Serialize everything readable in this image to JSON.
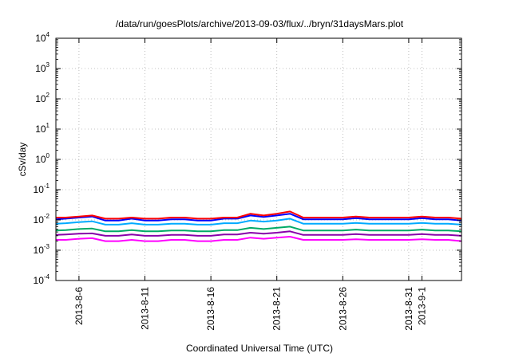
{
  "chart_data": {
    "type": "line",
    "title": "/data/run/goesPlots/archive/2013-09-03/flux/../bryn/31daysMars.plot",
    "xlabel": "Coordinated Universal Time (UTC)",
    "ylabel": "cSv/day",
    "y_scale": "log",
    "ylim": [
      0.0001,
      10000
    ],
    "xlim": [
      "2013-08-04T06:00",
      "2013-09-04T00:00"
    ],
    "y_ticks": [
      {
        "value": 0.0001,
        "base": "10",
        "exp": "-4"
      },
      {
        "value": 0.001,
        "base": "10",
        "exp": "-3"
      },
      {
        "value": 0.01,
        "base": "10",
        "exp": "-2"
      },
      {
        "value": 0.1,
        "base": "10",
        "exp": "-1"
      },
      {
        "value": 1,
        "base": "10",
        "exp": "0"
      },
      {
        "value": 10,
        "base": "10",
        "exp": "1"
      },
      {
        "value": 100,
        "base": "10",
        "exp": "2"
      },
      {
        "value": 1000,
        "base": "10",
        "exp": "3"
      },
      {
        "value": 10000,
        "base": "10",
        "exp": "4"
      }
    ],
    "x_ticks": [
      {
        "date": "2013-08-06",
        "label": "2013-8-6"
      },
      {
        "date": "2013-08-11",
        "label": "2013-8-11"
      },
      {
        "date": "2013-08-16",
        "label": "2013-8-16"
      },
      {
        "date": "2013-08-21",
        "label": "2013-8-21"
      },
      {
        "date": "2013-08-26",
        "label": "2013-8-26"
      },
      {
        "date": "2013-08-31",
        "label": "2013-8-31"
      },
      {
        "date": "2013-09-01",
        "label": "2013-9-1"
      }
    ],
    "grid": true,
    "legend": "none",
    "series_points": [
      "2013-08-04T06:00",
      "2013-08-05T00:00",
      "2013-08-06T00:00",
      "2013-08-07T00:00",
      "2013-08-08T00:00",
      "2013-08-09T00:00",
      "2013-08-10T00:00",
      "2013-08-11T00:00",
      "2013-08-12T00:00",
      "2013-08-13T00:00",
      "2013-08-14T00:00",
      "2013-08-15T00:00",
      "2013-08-16T00:00",
      "2013-08-17T00:00",
      "2013-08-18T00:00",
      "2013-08-19T00:00",
      "2013-08-20T00:00",
      "2013-08-21T00:00",
      "2013-08-22T00:00",
      "2013-08-23T00:00",
      "2013-08-24T00:00",
      "2013-08-25T00:00",
      "2013-08-26T00:00",
      "2013-08-27T00:00",
      "2013-08-28T00:00",
      "2013-08-29T00:00",
      "2013-08-30T00:00",
      "2013-08-31T00:00",
      "2013-09-01T00:00",
      "2013-09-02T00:00",
      "2013-09-03T00:00",
      "2013-09-04T00:00"
    ],
    "series": [
      {
        "color": "#ff0000",
        "values": [
          0.012,
          0.012,
          0.013,
          0.014,
          0.011,
          0.011,
          0.012,
          0.011,
          0.011,
          0.012,
          0.012,
          0.011,
          0.011,
          0.012,
          0.012,
          0.016,
          0.014,
          0.016,
          0.019,
          0.012,
          0.012,
          0.012,
          0.012,
          0.013,
          0.012,
          0.012,
          0.012,
          0.012,
          0.013,
          0.012,
          0.012,
          0.011
        ]
      },
      {
        "color": "#0000ff",
        "values": [
          0.0105,
          0.011,
          0.012,
          0.013,
          0.0095,
          0.0095,
          0.011,
          0.0095,
          0.0095,
          0.0105,
          0.0105,
          0.0095,
          0.0095,
          0.011,
          0.011,
          0.014,
          0.0125,
          0.014,
          0.016,
          0.0105,
          0.0105,
          0.0105,
          0.0105,
          0.0115,
          0.0105,
          0.0105,
          0.0105,
          0.0105,
          0.0115,
          0.0105,
          0.0105,
          0.0095
        ]
      },
      {
        "color": "#00aaff",
        "values": [
          0.0075,
          0.0078,
          0.0085,
          0.009,
          0.007,
          0.007,
          0.0078,
          0.007,
          0.007,
          0.0075,
          0.0075,
          0.007,
          0.007,
          0.0078,
          0.0078,
          0.0095,
          0.0088,
          0.0095,
          0.011,
          0.0075,
          0.0075,
          0.0075,
          0.0075,
          0.008,
          0.0075,
          0.0075,
          0.0075,
          0.0075,
          0.008,
          0.0075,
          0.0075,
          0.007
        ]
      },
      {
        "color": "#00aa66",
        "values": [
          0.0045,
          0.0046,
          0.005,
          0.0052,
          0.0042,
          0.0042,
          0.0046,
          0.0042,
          0.0042,
          0.0045,
          0.0045,
          0.0042,
          0.0042,
          0.0046,
          0.0046,
          0.0055,
          0.005,
          0.0055,
          0.006,
          0.0045,
          0.0045,
          0.0045,
          0.0045,
          0.0048,
          0.0045,
          0.0045,
          0.0045,
          0.0045,
          0.0048,
          0.0045,
          0.0045,
          0.0042
        ]
      },
      {
        "color": "#8800aa",
        "values": [
          0.0032,
          0.0033,
          0.0035,
          0.0036,
          0.003,
          0.003,
          0.0033,
          0.003,
          0.003,
          0.0032,
          0.0032,
          0.003,
          0.003,
          0.0033,
          0.0033,
          0.0038,
          0.0035,
          0.0038,
          0.0042,
          0.0032,
          0.0032,
          0.0032,
          0.0032,
          0.0034,
          0.0032,
          0.0032,
          0.0032,
          0.0032,
          0.0034,
          0.0032,
          0.0032,
          0.003
        ]
      },
      {
        "color": "#ff00ff",
        "values": [
          0.0022,
          0.0022,
          0.0024,
          0.0025,
          0.002,
          0.002,
          0.0022,
          0.002,
          0.002,
          0.0022,
          0.0022,
          0.002,
          0.002,
          0.0022,
          0.0022,
          0.0026,
          0.0024,
          0.0026,
          0.0028,
          0.0022,
          0.0022,
          0.0022,
          0.0022,
          0.0023,
          0.0022,
          0.0022,
          0.0022,
          0.0022,
          0.0023,
          0.0022,
          0.0022,
          0.002
        ]
      }
    ]
  }
}
